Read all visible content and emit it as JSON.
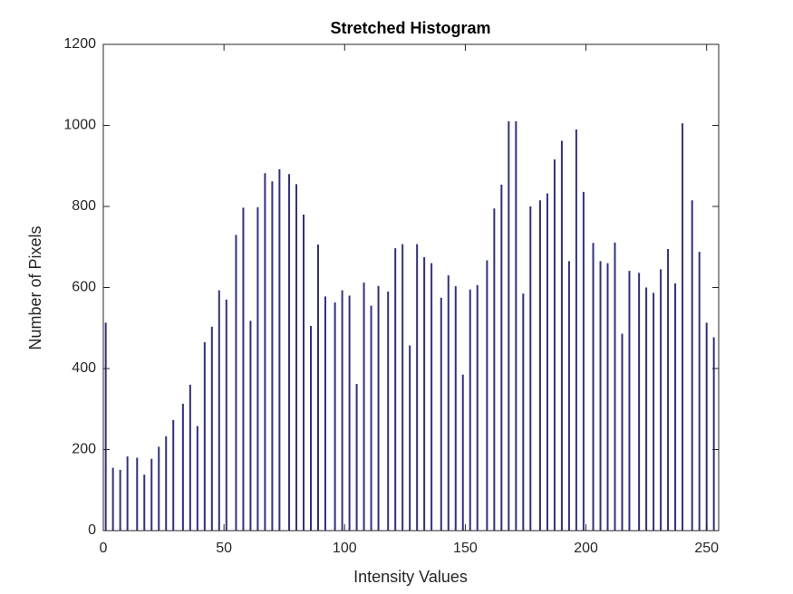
{
  "chart_data": {
    "type": "bar",
    "title": "Stretched Histogram",
    "xlabel": "Intensity Values",
    "ylabel": "Number of Pixels",
    "x": [
      1,
      4,
      7,
      10,
      14,
      17,
      20,
      23,
      26,
      29,
      33,
      36,
      39,
      42,
      45,
      48,
      51,
      55,
      58,
      61,
      64,
      67,
      70,
      73,
      77,
      80,
      83,
      86,
      89,
      92,
      96,
      99,
      102,
      105,
      108,
      111,
      114,
      118,
      121,
      124,
      127,
      130,
      133,
      136,
      140,
      143,
      146,
      149,
      152,
      155,
      159,
      162,
      165,
      168,
      171,
      174,
      177,
      181,
      184,
      187,
      190,
      193,
      196,
      199,
      203,
      206,
      209,
      212,
      215,
      218,
      222,
      225,
      228,
      231,
      234,
      237,
      240,
      244,
      247,
      250,
      253
    ],
    "values": [
      513,
      155,
      150,
      183,
      180,
      138,
      177,
      207,
      233,
      273,
      313,
      360,
      258,
      465,
      503,
      593,
      570,
      730,
      797,
      518,
      798,
      882,
      862,
      892,
      880,
      855,
      780,
      505,
      706,
      578,
      563,
      593,
      580,
      362,
      612,
      555,
      604,
      590,
      697,
      707,
      457,
      707,
      675,
      660,
      575,
      630,
      603,
      385,
      595,
      606,
      667,
      795,
      854,
      1010,
      1010,
      585,
      800,
      815,
      832,
      916,
      962,
      665,
      990,
      836,
      710,
      665,
      660,
      711,
      486,
      641,
      636,
      600,
      587,
      645,
      695,
      610,
      1005,
      815,
      688,
      513,
      477
    ],
    "color": "#2f2f8a",
    "xlim": [
      0,
      255
    ],
    "xticks": [
      0,
      50,
      100,
      150,
      200,
      250
    ],
    "ylim": [
      0,
      1200
    ],
    "yticks": [
      0,
      200,
      400,
      600,
      800,
      1000,
      1200
    ]
  }
}
